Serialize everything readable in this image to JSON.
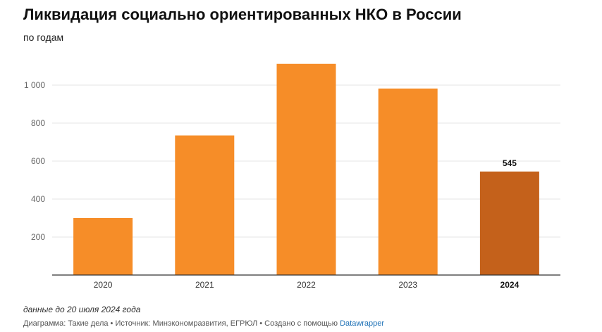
{
  "chart_data": {
    "type": "bar",
    "title": "Ликвидация социально ориентированных НКО в России",
    "subtitle": "по годам",
    "categories": [
      "2020",
      "2021",
      "2022",
      "2023",
      "2024"
    ],
    "values": [
      300,
      735,
      1112,
      982,
      545
    ],
    "ylim": [
      0,
      1150
    ],
    "yticks": [
      200,
      400,
      600,
      800,
      1000
    ],
    "ytick_labels": [
      "200",
      "400",
      "600",
      "800",
      "1 000"
    ],
    "highlight_category": "2024",
    "data_labels": [
      {
        "category": "2024",
        "text": "545"
      }
    ],
    "colors": {
      "bar": "#f68d28",
      "highlight": "#c4611b",
      "grid": "#e6e6e6",
      "axis": "#333333"
    },
    "xlabel": "",
    "ylabel": ""
  },
  "footer": {
    "note": "данные до 20 июля 2024 года",
    "credit_text": "Диаграмма: Такие дела • Источник: Минэкономразвития, ЕГРЮЛ • Создано с помощью ",
    "credit_link": "Datawrapper"
  }
}
